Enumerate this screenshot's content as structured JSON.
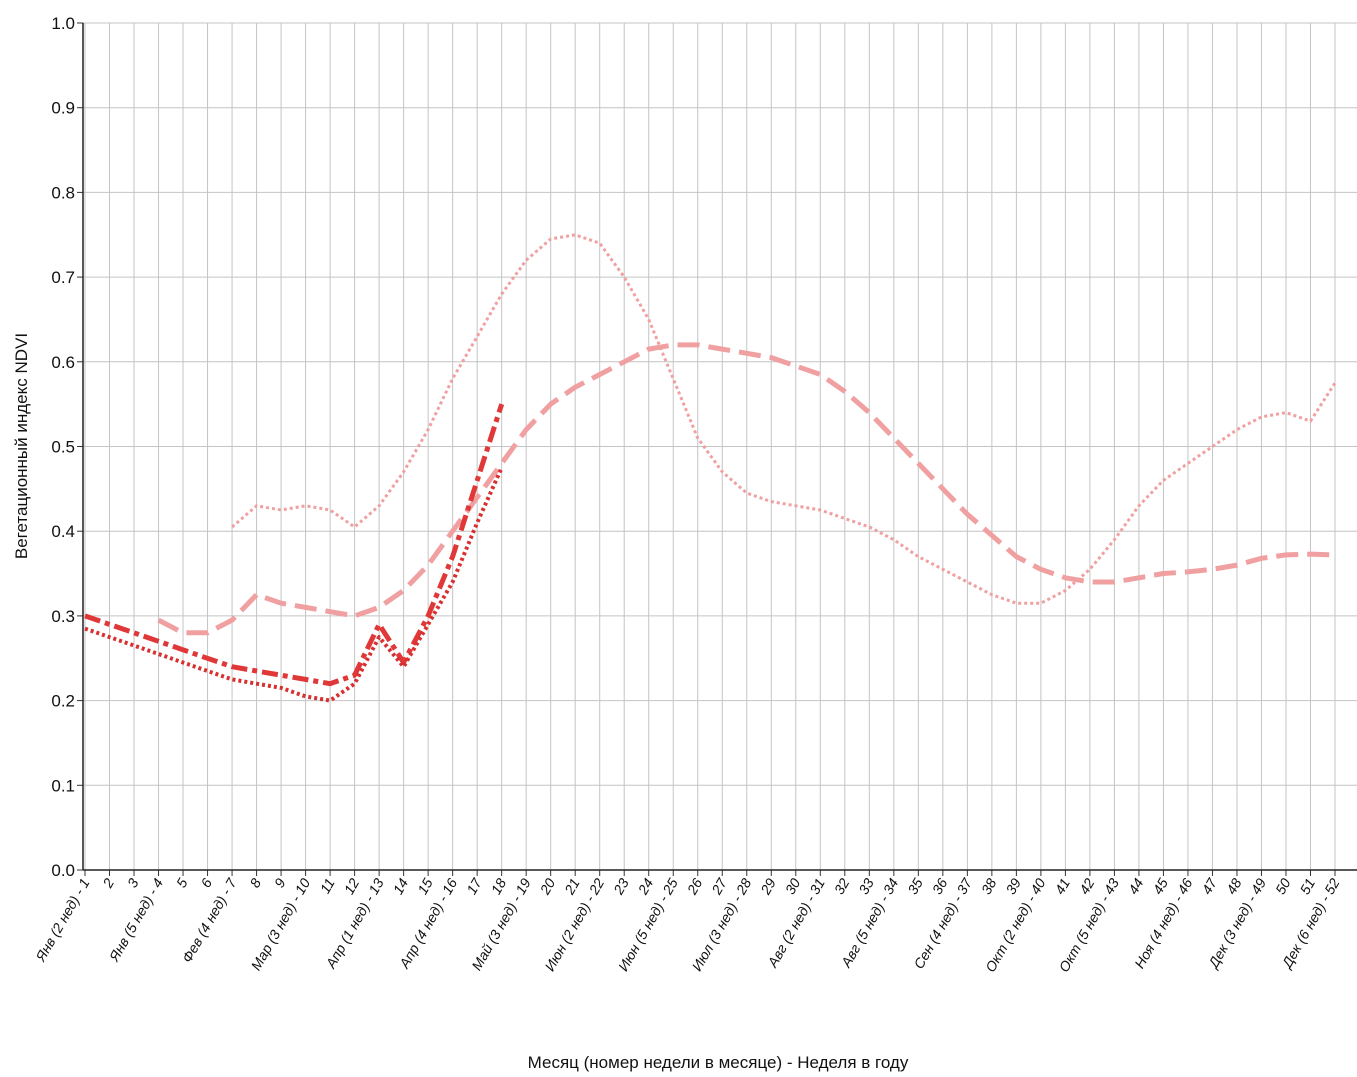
{
  "chart_data": {
    "type": "line",
    "title": "",
    "xlabel": "Месяц (номер недели в месяце) - Неделя в году",
    "ylabel": "Вегетационный индекс NDVI",
    "ylim": [
      0,
      1
    ],
    "yticks": [
      "0.0",
      "0.1",
      "0.2",
      "0.3",
      "0.4",
      "0.5",
      "0.6",
      "0.7",
      "0.8",
      "0.9",
      "1.0"
    ],
    "x_tick_labels": [
      "Янв (2 нед) - 1",
      "2",
      "3",
      "Янв (5 нед) - 4",
      "5",
      "6",
      "Фев (4 нед) - 7",
      "8",
      "9",
      "Мар (3 нед) - 10",
      "11",
      "12",
      "Апр (1 нед) - 13",
      "14",
      "15",
      "Апр (4 нед) - 16",
      "17",
      "18",
      "Май (3 нед) - 19",
      "20",
      "21",
      "Июн (2 нед) - 22",
      "23",
      "24",
      "Июн (5 нед) - 25",
      "26",
      "27",
      "Июл (3 нед) - 28",
      "29",
      "30",
      "Авг (2 нед) - 31",
      "32",
      "33",
      "Авг (5 нед) - 34",
      "35",
      "36",
      "Сен (4 нед) - 37",
      "38",
      "39",
      "Окт (2 нед) - 40",
      "41",
      "42",
      "Окт (5 нед) - 43",
      "44",
      "45",
      "Ноя (4 нед) - 46",
      "47",
      "48",
      "Дек (3 нед) - 49",
      "50",
      "51",
      "Дек (6 нед) - 52"
    ],
    "grid": true,
    "legend": "none",
    "series": [
      {
        "style": "dotted",
        "color": "#f0a0a0",
        "width": 3,
        "x": [
          7,
          8,
          9,
          10,
          11,
          12,
          13,
          14,
          15,
          16,
          17,
          18,
          19,
          20,
          21,
          22,
          23,
          24,
          25,
          26,
          27,
          28,
          29,
          30,
          31,
          32,
          33,
          34,
          35,
          36,
          37,
          38,
          39,
          40,
          41,
          42,
          43,
          44,
          45,
          46,
          47,
          48,
          49,
          50,
          51,
          52
        ],
        "values": [
          0.405,
          0.43,
          0.425,
          0.43,
          0.425,
          0.405,
          0.43,
          0.47,
          0.52,
          0.58,
          0.63,
          0.68,
          0.72,
          0.745,
          0.75,
          0.74,
          0.7,
          0.65,
          0.58,
          0.51,
          0.47,
          0.445,
          0.435,
          0.43,
          0.425,
          0.415,
          0.405,
          0.39,
          0.37,
          0.355,
          0.34,
          0.325,
          0.315,
          0.315,
          0.33,
          0.355,
          0.39,
          0.43,
          0.46,
          0.48,
          0.5,
          0.52,
          0.535,
          0.54,
          0.53,
          0.575
        ]
      },
      {
        "style": "long-dash",
        "color": "#f0a0a0",
        "width": 5,
        "x": [
          4,
          5,
          6,
          7,
          8,
          9,
          10,
          11,
          12,
          13,
          14,
          15,
          16,
          17,
          18,
          19,
          20,
          21,
          22,
          23,
          24,
          25,
          26,
          27,
          28,
          29,
          30,
          31,
          32,
          33,
          34,
          35,
          36,
          37,
          38,
          39,
          40,
          41,
          42,
          43,
          44,
          45,
          46,
          47,
          48,
          49,
          50,
          51,
          52
        ],
        "values": [
          0.295,
          0.28,
          0.28,
          0.295,
          0.325,
          0.315,
          0.31,
          0.305,
          0.3,
          0.31,
          0.33,
          0.36,
          0.4,
          0.44,
          0.48,
          0.52,
          0.55,
          0.57,
          0.585,
          0.6,
          0.615,
          0.62,
          0.62,
          0.615,
          0.61,
          0.605,
          0.595,
          0.585,
          0.565,
          0.54,
          0.51,
          0.48,
          0.45,
          0.42,
          0.395,
          0.37,
          0.355,
          0.345,
          0.34,
          0.34,
          0.345,
          0.35,
          0.352,
          0.355,
          0.36,
          0.368,
          0.372,
          0.373,
          0.372
        ]
      },
      {
        "style": "dash-dot",
        "color": "#e03838",
        "width": 5,
        "x": [
          1,
          2,
          3,
          4,
          5,
          6,
          7,
          8,
          9,
          10,
          11,
          12,
          13,
          14,
          15,
          16,
          17,
          18
        ],
        "values": [
          0.3,
          0.29,
          0.28,
          0.27,
          0.26,
          0.25,
          0.24,
          0.235,
          0.23,
          0.225,
          0.22,
          0.23,
          0.29,
          0.245,
          0.3,
          0.37,
          0.46,
          0.55
        ]
      },
      {
        "style": "dotted",
        "color": "#d83030",
        "width": 4,
        "x": [
          1,
          2,
          3,
          4,
          5,
          6,
          7,
          8,
          9,
          10,
          11,
          12,
          13,
          14,
          15,
          16,
          17,
          18
        ],
        "values": [
          0.285,
          0.275,
          0.265,
          0.255,
          0.245,
          0.235,
          0.225,
          0.22,
          0.215,
          0.205,
          0.2,
          0.22,
          0.275,
          0.24,
          0.29,
          0.34,
          0.41,
          0.475
        ]
      }
    ]
  }
}
